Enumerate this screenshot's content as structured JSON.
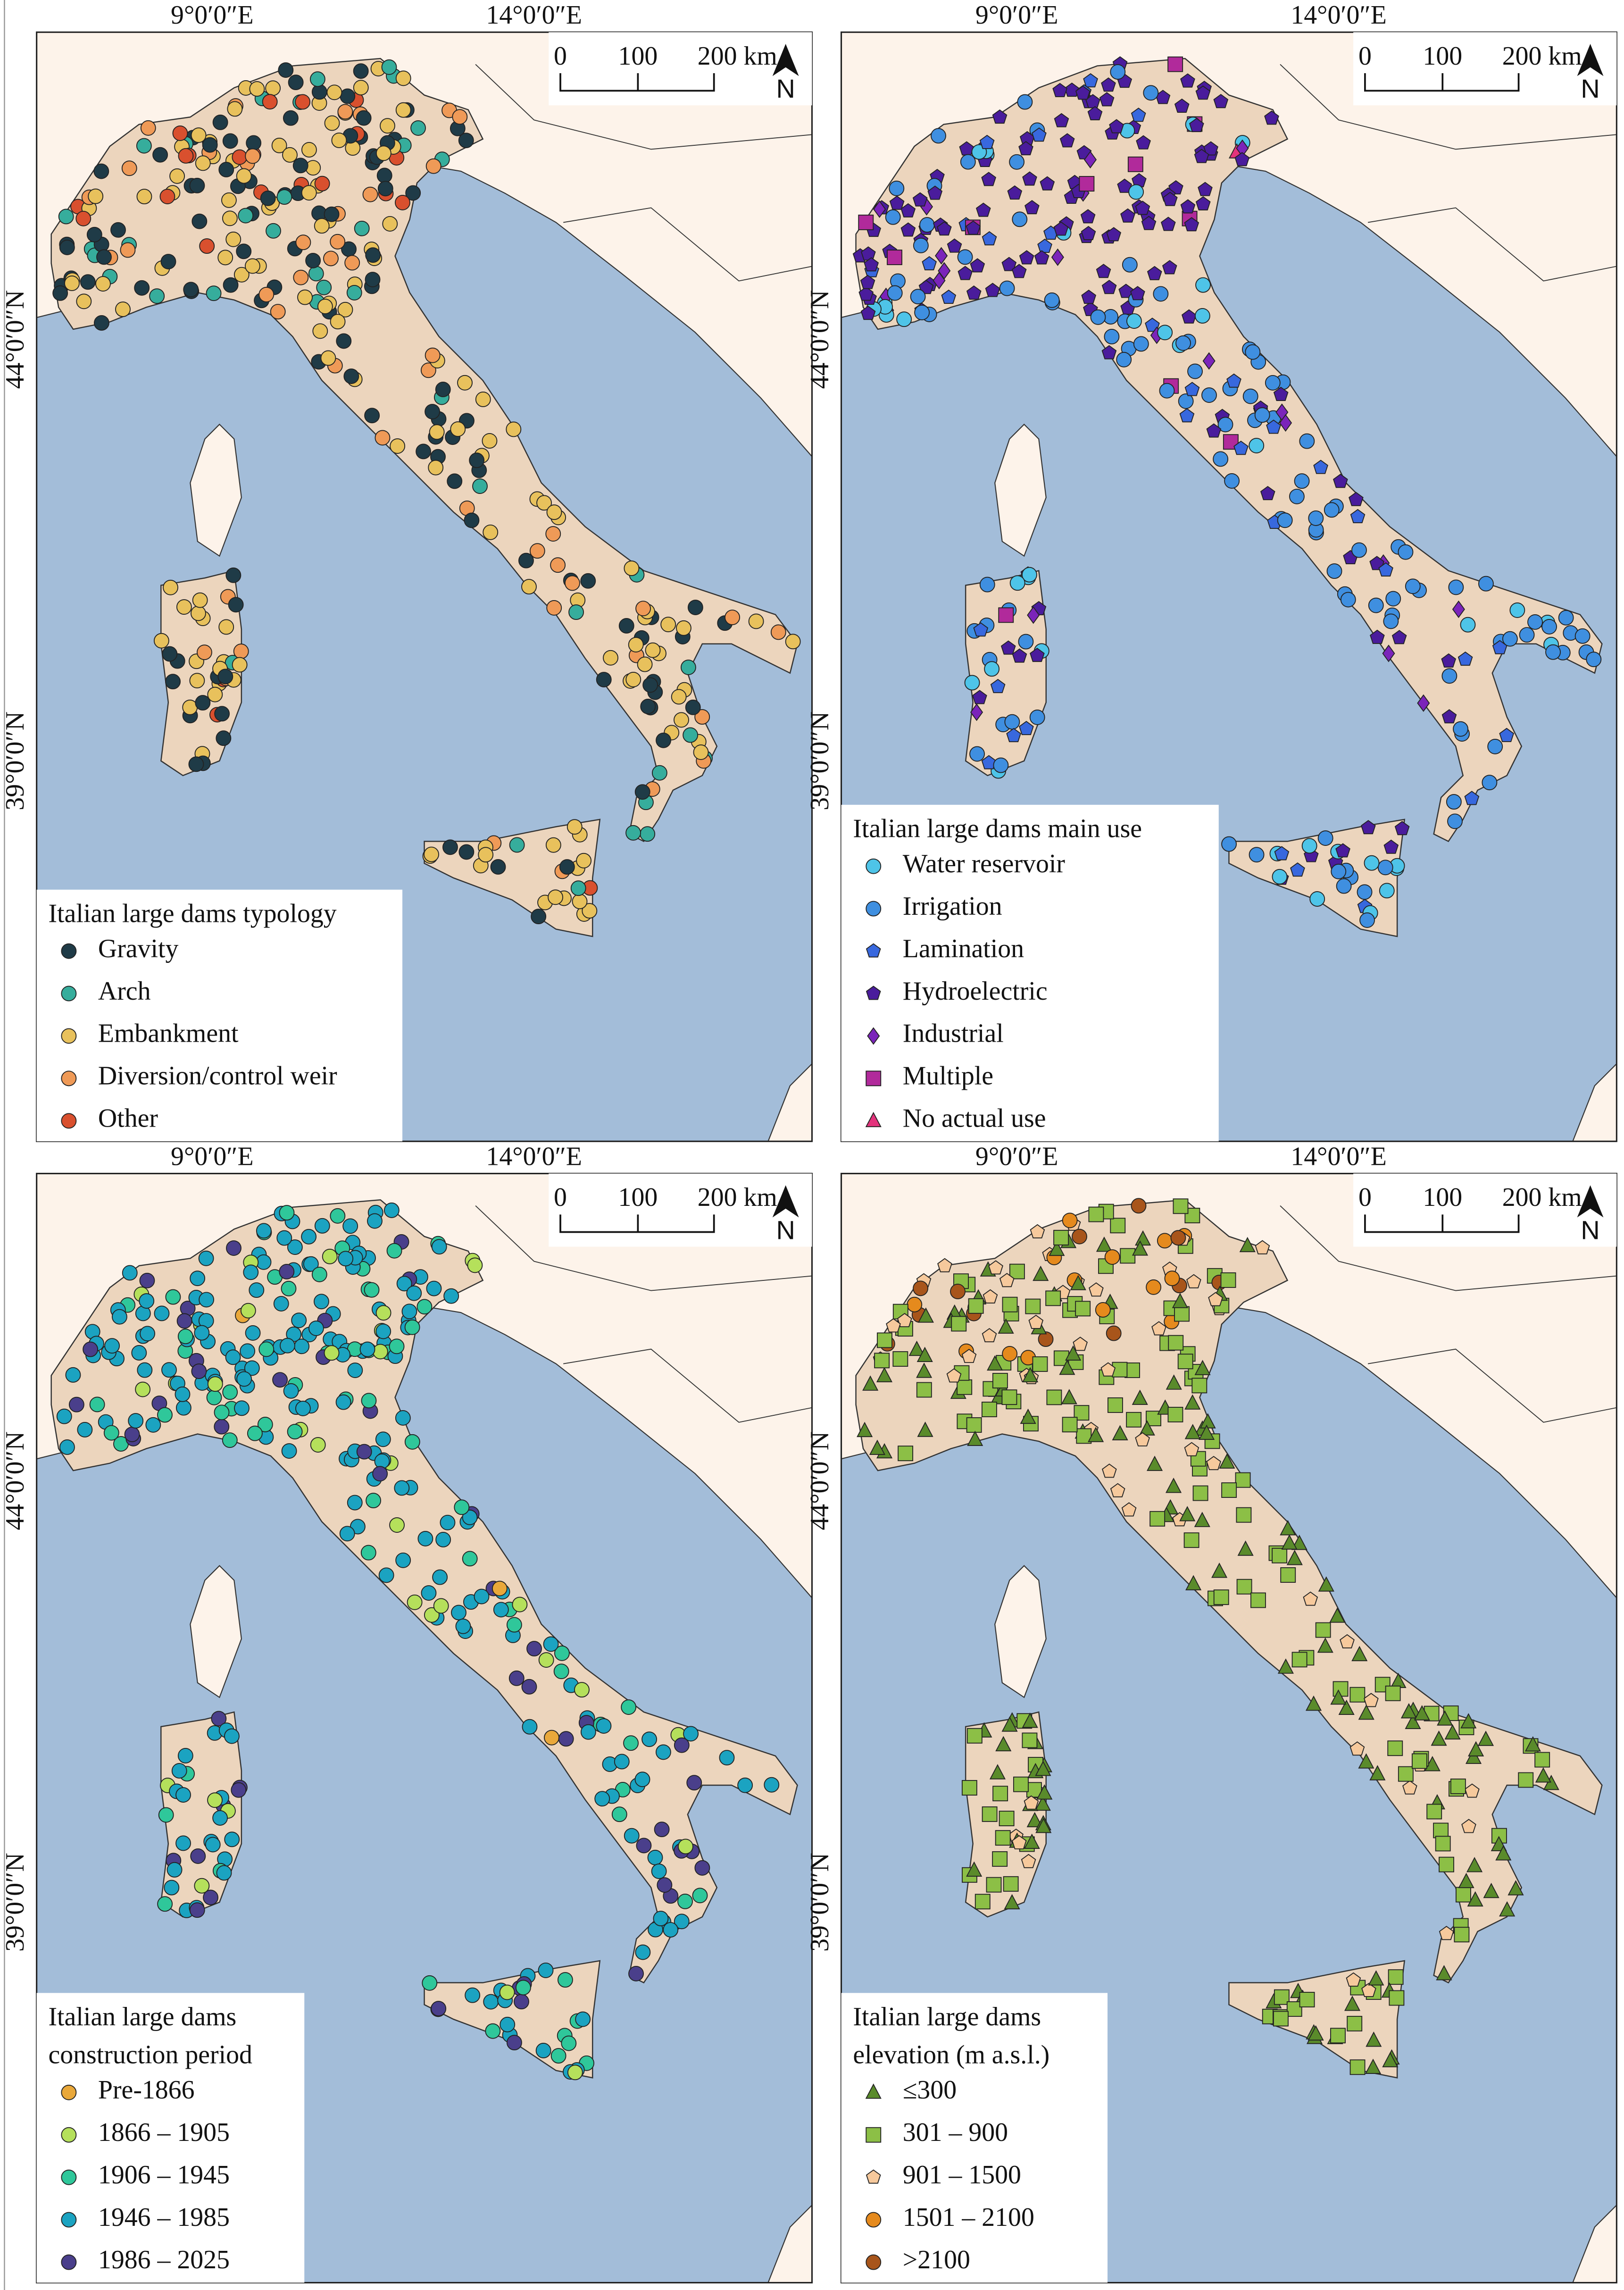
{
  "panels": [
    {
      "lon_labels": [
        "9°0′0″E",
        "14°0′0″E"
      ],
      "lat_labels": [
        "44°0′0″N",
        "39°0′0″N"
      ],
      "scale_bar": {
        "labels": [
          "0",
          "100",
          "200 km"
        ],
        "north": "N"
      },
      "legend": {
        "title": [
          "Italian large dams typology"
        ],
        "items": [
          {
            "label": "Gravity",
            "color": "#1f3b47",
            "marker": "circle"
          },
          {
            "label": "Arch",
            "color": "#36ad9c",
            "marker": "circle"
          },
          {
            "label": "Embankment",
            "color": "#e8c15c",
            "marker": "circle"
          },
          {
            "label": "Diversion/control weir",
            "color": "#ef9a57",
            "marker": "circle"
          },
          {
            "label": "Other",
            "color": "#d9502e",
            "marker": "circle"
          }
        ]
      }
    },
    {
      "lon_labels": [
        "9°0′0″E",
        "14°0′0″E"
      ],
      "lat_labels": [
        "44°0′0″N",
        "39°0′0″N"
      ],
      "scale_bar": {
        "labels": [
          "0",
          "100",
          "200 km"
        ],
        "north": "N"
      },
      "legend": {
        "title": [
          "Italian large dams main use"
        ],
        "items": [
          {
            "label": "Water reservoir",
            "color": "#4ec4e8",
            "marker": "circle"
          },
          {
            "label": "Irrigation",
            "color": "#3f8fe0",
            "marker": "circle"
          },
          {
            "label": "Lamination",
            "color": "#3868de",
            "marker": "pentagon"
          },
          {
            "label": "Hydroelectric",
            "color": "#4a1c9c",
            "marker": "pentagon"
          },
          {
            "label": "Industrial",
            "color": "#7b24ba",
            "marker": "diamond"
          },
          {
            "label": "Multiple",
            "color": "#b12a9b",
            "marker": "square"
          },
          {
            "label": "No actual use",
            "color": "#e3337c",
            "marker": "triangle"
          }
        ]
      }
    },
    {
      "lon_labels": [
        "9°0′0″E",
        "14°0′0″E"
      ],
      "lat_labels": [
        "44°0′0″N",
        "39°0′0″N"
      ],
      "scale_bar": {
        "labels": [
          "0",
          "100",
          "200 km"
        ],
        "north": "N"
      },
      "legend": {
        "title": [
          "Italian large dams",
          "construction period"
        ],
        "items": [
          {
            "label": "Pre-1866",
            "color": "#e9a83a",
            "marker": "circle"
          },
          {
            "label": "1866 – 1905",
            "color": "#b5e05b",
            "marker": "circle"
          },
          {
            "label": "1906 – 1945",
            "color": "#2fc79a",
            "marker": "circle"
          },
          {
            "label": "1946 – 1985",
            "color": "#1ba3c1",
            "marker": "circle"
          },
          {
            "label": "1986 – 2025",
            "color": "#4a3f8b",
            "marker": "circle"
          }
        ]
      }
    },
    {
      "lon_labels": [
        "9°0′0″E",
        "14°0′0″E"
      ],
      "lat_labels": [
        "44°0′0″N",
        "39°0′0″N"
      ],
      "scale_bar": {
        "labels": [
          "0",
          "100",
          "200 km"
        ],
        "north": "N"
      },
      "legend": {
        "title": [
          "Italian large dams",
          "elevation (m a.s.l.)"
        ],
        "items": [
          {
            "label": "≤300",
            "color": "#5a8b2b",
            "marker": "triangle"
          },
          {
            "label": "301 – 900",
            "color": "#8cbf46",
            "marker": "square"
          },
          {
            "label": "901 – 1500",
            "color": "#f6c99c",
            "marker": "pentagon"
          },
          {
            "label": "1501 – 2100",
            "color": "#e58a1d",
            "marker": "circle"
          },
          {
            "label": ">2100",
            "color": "#a8551b",
            "marker": "circle"
          }
        ]
      }
    }
  ]
}
